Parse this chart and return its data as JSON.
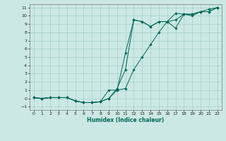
{
  "xlabel": "Humidex (Indice chaleur)",
  "ylabel": "",
  "bg_color": "#cce8e4",
  "grid_color": "#aad4cc",
  "line_color": "#006655",
  "xlim": [
    -0.5,
    22.5
  ],
  "ylim": [
    -1.4,
    11.4
  ],
  "xticks": [
    0,
    1,
    2,
    3,
    4,
    5,
    6,
    7,
    8,
    9,
    10,
    11,
    12,
    13,
    14,
    15,
    16,
    17,
    18,
    19,
    20,
    21,
    22
  ],
  "yticks": [
    -1,
    0,
    1,
    2,
    3,
    4,
    5,
    6,
    7,
    8,
    9,
    10,
    11
  ],
  "series": [
    {
      "x": [
        0,
        1,
        2,
        3,
        4,
        5,
        6,
        7,
        8,
        9,
        10,
        11,
        12,
        13,
        14,
        15,
        16,
        17,
        18,
        19,
        20,
        21,
        22
      ],
      "y": [
        0.1,
        0.0,
        0.1,
        0.1,
        0.1,
        -0.3,
        -0.5,
        -0.5,
        -0.4,
        0.0,
        1.2,
        3.5,
        9.5,
        9.3,
        8.7,
        9.3,
        9.3,
        8.5,
        10.2,
        10.2,
        10.5,
        10.5,
        11.0
      ]
    },
    {
      "x": [
        0,
        1,
        2,
        3,
        4,
        5,
        6,
        7,
        8,
        9,
        10,
        11,
        12,
        13,
        14,
        15,
        16,
        17,
        18,
        19,
        20,
        21,
        22
      ],
      "y": [
        0.1,
        0.0,
        0.1,
        0.1,
        0.1,
        -0.3,
        -0.5,
        -0.5,
        -0.4,
        0.0,
        1.0,
        5.5,
        9.5,
        9.3,
        8.7,
        9.3,
        9.3,
        10.3,
        10.2,
        10.2,
        10.5,
        10.5,
        11.0
      ]
    },
    {
      "x": [
        0,
        1,
        2,
        3,
        4,
        5,
        6,
        7,
        8,
        9,
        10,
        11,
        12,
        13,
        14,
        15,
        16,
        17,
        18,
        19,
        20,
        21,
        22
      ],
      "y": [
        0.1,
        0.0,
        0.1,
        0.1,
        0.1,
        -0.3,
        -0.5,
        -0.5,
        -0.4,
        1.0,
        1.0,
        1.2,
        3.5,
        5.0,
        6.5,
        8.0,
        9.3,
        9.5,
        10.2,
        10.0,
        10.5,
        10.8,
        11.0
      ]
    }
  ]
}
